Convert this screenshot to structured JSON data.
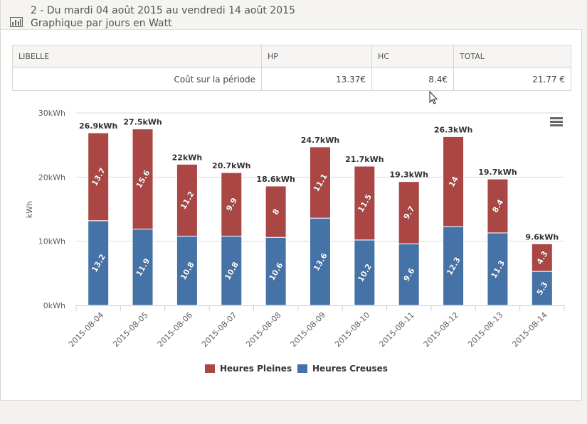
{
  "header": {
    "title": "2 - Du mardi 04 août 2015 au vendredi 14 août 2015 Graphique par jours en Watt",
    "icon": "bar-chart-icon"
  },
  "summary_table": {
    "columns": [
      "LIBELLE",
      "HP",
      "HC",
      "TOTAL"
    ],
    "row": {
      "label": "Coût sur la période",
      "hp": "13.37€",
      "hc": "8.4€",
      "total": "21.77 €"
    }
  },
  "chart_menu_icon": "hamburger-menu-icon",
  "chart_data": {
    "type": "bar",
    "stacked": true,
    "categories": [
      "2015-08-04",
      "2015-08-05",
      "2015-08-06",
      "2015-08-07",
      "2015-08-08",
      "2015-08-09",
      "2015-08-10",
      "2015-08-11",
      "2015-08-12",
      "2015-08-13",
      "2015-08-14"
    ],
    "series": [
      {
        "name": "Heures Pleines",
        "color": "#aa4643",
        "values": [
          13.7,
          15.6,
          11.2,
          9.9,
          8,
          11.1,
          11.5,
          9.7,
          14,
          8.4,
          4.3
        ]
      },
      {
        "name": "Heures Creuses",
        "color": "#4572a7",
        "values": [
          13.2,
          11.9,
          10.8,
          10.8,
          10.6,
          13.6,
          10.2,
          9.6,
          12.3,
          11.3,
          5.3
        ]
      }
    ],
    "totals": [
      "26.9kWh",
      "27.5kWh",
      "22kWh",
      "20.7kWh",
      "18.6kWh",
      "24.7kWh",
      "21.7kWh",
      "19.3kWh",
      "26.3kWh",
      "19.7kWh",
      "9.6kWh"
    ],
    "ylabel": "kWh",
    "ylim": [
      0,
      30
    ],
    "yticks": [
      0,
      10,
      20,
      30
    ],
    "ytick_labels": [
      "0kWh",
      "10kWh",
      "20kWh",
      "30kWh"
    ],
    "legend_position": "bottom-center",
    "grid": true
  }
}
